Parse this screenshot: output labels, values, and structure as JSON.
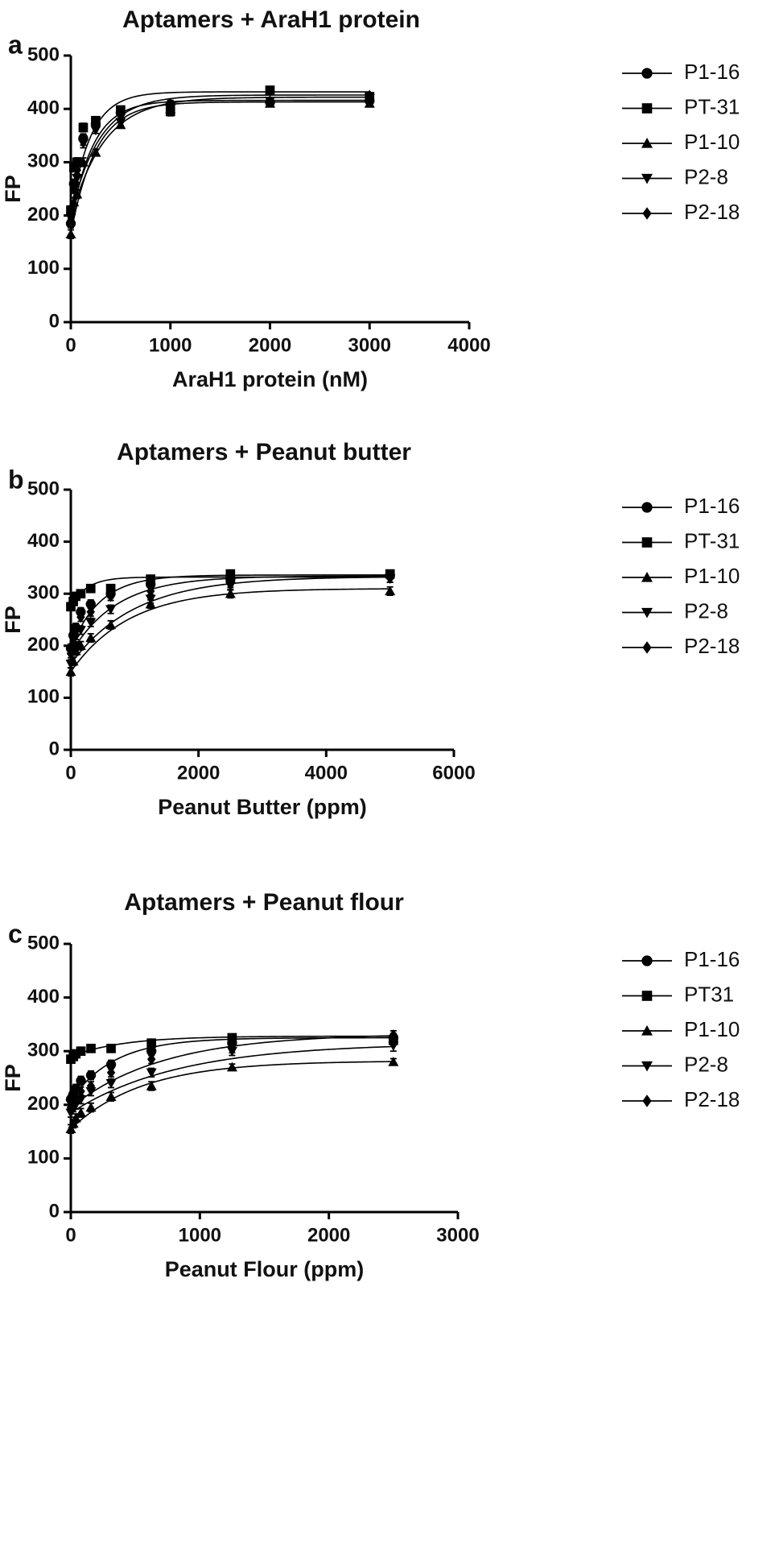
{
  "chart_data": [
    {
      "type": "line",
      "panel_label": "a",
      "title": "Aptamers + AraH1 protein",
      "xlabel": "AraH1 protein (nM)",
      "ylabel": "FP",
      "xlim": [
        0,
        4000
      ],
      "ylim": [
        0,
        500
      ],
      "xticks": [
        "0",
        "1000",
        "2000",
        "3000",
        "4000"
      ],
      "yticks": [
        "0",
        "100",
        "200",
        "300",
        "400",
        "500"
      ],
      "x": [
        0,
        31.25,
        62.5,
        125,
        250,
        500,
        1000,
        2000,
        3000
      ],
      "series": [
        {
          "name": "P1-16",
          "marker": "circle",
          "values": [
            185,
            260,
            300,
            345,
            372,
            393,
            408,
            412,
            415
          ],
          "err": [
            8,
            8,
            8,
            8,
            6,
            6,
            6,
            5,
            5
          ],
          "fit": {
            "top": 416,
            "bottom": 185,
            "k": 0.0045
          }
        },
        {
          "name": "PT-31",
          "marker": "square",
          "values": [
            210,
            290,
            300,
            365,
            378,
            398,
            395,
            435,
            423
          ],
          "err": [
            8,
            8,
            8,
            8,
            6,
            6,
            8,
            5,
            5
          ],
          "fit": {
            "top": 432,
            "bottom": 205,
            "k": 0.005
          }
        },
        {
          "name": "P1-10",
          "marker": "triangle-up",
          "values": [
            165,
            225,
            240,
            300,
            318,
            370,
            400,
            410,
            410
          ],
          "err": [
            8,
            8,
            8,
            8,
            6,
            6,
            6,
            5,
            5
          ],
          "fit": {
            "top": 413,
            "bottom": 165,
            "k": 0.004
          }
        },
        {
          "name": "P2-8",
          "marker": "triangle-down",
          "values": [
            195,
            250,
            270,
            335,
            360,
            375,
            405,
            415,
            420
          ],
          "err": [
            8,
            8,
            8,
            8,
            6,
            6,
            6,
            5,
            5
          ],
          "fit": {
            "top": 422,
            "bottom": 195,
            "k": 0.003
          }
        },
        {
          "name": "P2-18",
          "marker": "diamond",
          "values": [
            200,
            250,
            285,
            340,
            370,
            380,
            410,
            415,
            425
          ],
          "err": [
            8,
            8,
            8,
            8,
            6,
            6,
            6,
            5,
            5
          ],
          "fit": {
            "top": 426,
            "bottom": 200,
            "k": 0.0035
          }
        }
      ],
      "legend_position": "right"
    },
    {
      "type": "line",
      "panel_label": "b",
      "title": "Aptamers + Peanut butter",
      "xlabel": "Peanut Butter (ppm)",
      "ylabel": "FP",
      "xlim": [
        0,
        6000
      ],
      "ylim": [
        0,
        500
      ],
      "xticks": [
        "0",
        "2000",
        "4000",
        "6000"
      ],
      "yticks": [
        "0",
        "100",
        "200",
        "300",
        "400",
        "500"
      ],
      "x": [
        0,
        39,
        78,
        156,
        312,
        625,
        1250,
        2500,
        5000
      ],
      "series": [
        {
          "name": "P1-16",
          "marker": "circle",
          "values": [
            195,
            220,
            235,
            265,
            280,
            300,
            318,
            328,
            335
          ],
          "err": [
            8,
            8,
            8,
            8,
            8,
            8,
            6,
            6,
            6
          ],
          "fit": {
            "top": 336,
            "bottom": 195,
            "k": 0.0022
          }
        },
        {
          "name": "PT-31",
          "marker": "square",
          "values": [
            275,
            285,
            295,
            300,
            310,
            310,
            328,
            338,
            338
          ],
          "err": [
            6,
            6,
            6,
            6,
            6,
            6,
            6,
            6,
            6
          ],
          "fit": {
            "top": 332,
            "bottom": 275,
            "k": 0.004
          }
        },
        {
          "name": "P1-10",
          "marker": "triangle-up",
          "values": [
            150,
            170,
            190,
            200,
            215,
            240,
            280,
            300,
            305
          ],
          "err": [
            8,
            8,
            8,
            8,
            8,
            8,
            8,
            8,
            8
          ],
          "fit": {
            "top": 310,
            "bottom": 150,
            "k": 0.0011
          }
        },
        {
          "name": "P2-8",
          "marker": "triangle-down",
          "values": [
            165,
            190,
            200,
            230,
            245,
            270,
            290,
            315,
            330
          ],
          "err": [
            8,
            8,
            8,
            8,
            8,
            8,
            8,
            8,
            8
          ],
          "fit": {
            "top": 333,
            "bottom": 165,
            "k": 0.001
          }
        },
        {
          "name": "P2-18",
          "marker": "diamond",
          "values": [
            185,
            205,
            220,
            255,
            265,
            295,
            305,
            320,
            330
          ],
          "err": [
            8,
            8,
            8,
            8,
            8,
            8,
            8,
            8,
            8
          ],
          "fit": {
            "top": 334,
            "bottom": 185,
            "k": 0.0014
          }
        }
      ],
      "legend_position": "right"
    },
    {
      "type": "line",
      "panel_label": "c",
      "title": "Aptamers +  Peanut flour",
      "xlabel": "Peanut Flour (ppm)",
      "ylabel": "FP",
      "xlim": [
        0,
        3000
      ],
      "ylim": [
        0,
        500
      ],
      "xticks": [
        "0",
        "1000",
        "2000",
        "3000"
      ],
      "yticks": [
        "0",
        "100",
        "200",
        "300",
        "400",
        "500"
      ],
      "x": [
        0,
        20,
        39,
        78,
        156,
        312,
        625,
        1250,
        2500
      ],
      "series": [
        {
          "name": "P1-16",
          "marker": "circle",
          "values": [
            210,
            220,
            230,
            245,
            255,
            275,
            300,
            315,
            325
          ],
          "err": [
            8,
            8,
            8,
            8,
            8,
            8,
            8,
            6,
            8
          ],
          "fit": {
            "top": 325,
            "bottom": 208,
            "k": 0.003
          }
        },
        {
          "name": "PT31",
          "marker": "square",
          "values": [
            285,
            290,
            295,
            300,
            305,
            305,
            315,
            325,
            320
          ],
          "err": [
            6,
            6,
            6,
            6,
            6,
            6,
            6,
            6,
            6
          ],
          "fit": {
            "top": 328,
            "bottom": 290,
            "k": 0.0025
          }
        },
        {
          "name": "P1-10",
          "marker": "triangle-up",
          "values": [
            155,
            165,
            175,
            185,
            195,
            215,
            235,
            270,
            280
          ],
          "err": [
            8,
            8,
            8,
            8,
            8,
            8,
            8,
            6,
            6
          ],
          "fit": {
            "top": 282,
            "bottom": 155,
            "k": 0.0018
          }
        },
        {
          "name": "P2-8",
          "marker": "triangle-down",
          "values": [
            185,
            195,
            200,
            210,
            225,
            240,
            260,
            300,
            310
          ],
          "err": [
            8,
            8,
            8,
            8,
            8,
            8,
            8,
            8,
            10
          ],
          "fit": {
            "top": 315,
            "bottom": 185,
            "k": 0.0012
          }
        },
        {
          "name": "P2-18",
          "marker": "diamond",
          "values": [
            195,
            205,
            215,
            225,
            235,
            260,
            285,
            305,
            330
          ],
          "err": [
            8,
            8,
            8,
            8,
            8,
            8,
            8,
            8,
            8
          ],
          "fit": {
            "top": 333,
            "bottom": 195,
            "k": 0.0014
          }
        }
      ],
      "legend_position": "right"
    }
  ]
}
